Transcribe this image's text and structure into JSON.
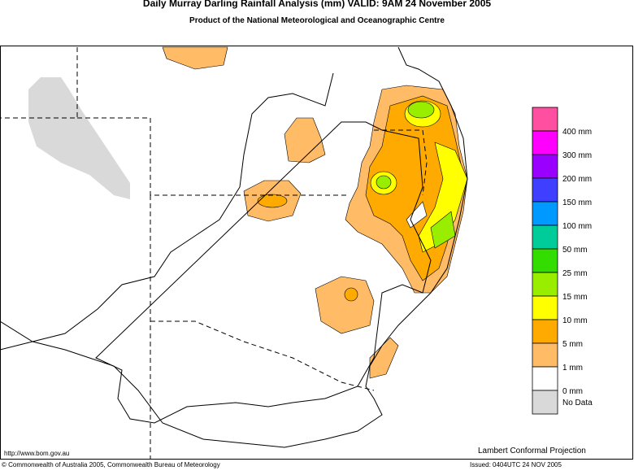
{
  "header": {
    "title": "Daily Murray Darling Rainfall Analysis (mm)  VALID: 9AM 24 November 2005",
    "subtitle": "Product of the National Meteorological and Oceanographic Centre"
  },
  "legend": [
    {
      "label": "400 mm",
      "color": "#ff4fa0"
    },
    {
      "label": "300 mm",
      "color": "#ff00ff"
    },
    {
      "label": "200 mm",
      "color": "#9900ff"
    },
    {
      "label": "150 mm",
      "color": "#3f3fff"
    },
    {
      "label": "100 mm",
      "color": "#0099ff"
    },
    {
      "label": "50 mm",
      "color": "#00cc99"
    },
    {
      "label": "25 mm",
      "color": "#33dd00"
    },
    {
      "label": "15 mm",
      "color": "#99ee00"
    },
    {
      "label": "10 mm",
      "color": "#ffff00"
    },
    {
      "label": "5 mm",
      "color": "#ffaa00"
    },
    {
      "label": "1 mm",
      "color": "#ffbb66"
    },
    {
      "label": "0 mm",
      "color": "#ffffff"
    },
    {
      "label": "No Data",
      "color": "#d9d9d9"
    }
  ],
  "footer": {
    "url": "http://www.bom.gov.au",
    "projection": "Lambert Conformal Projection",
    "copyright": "© Commonwealth of Australia 2005, Commonwealth Bureau of Meteorology",
    "issued": "Issued: 0404UTC 24 NOV 2005"
  }
}
